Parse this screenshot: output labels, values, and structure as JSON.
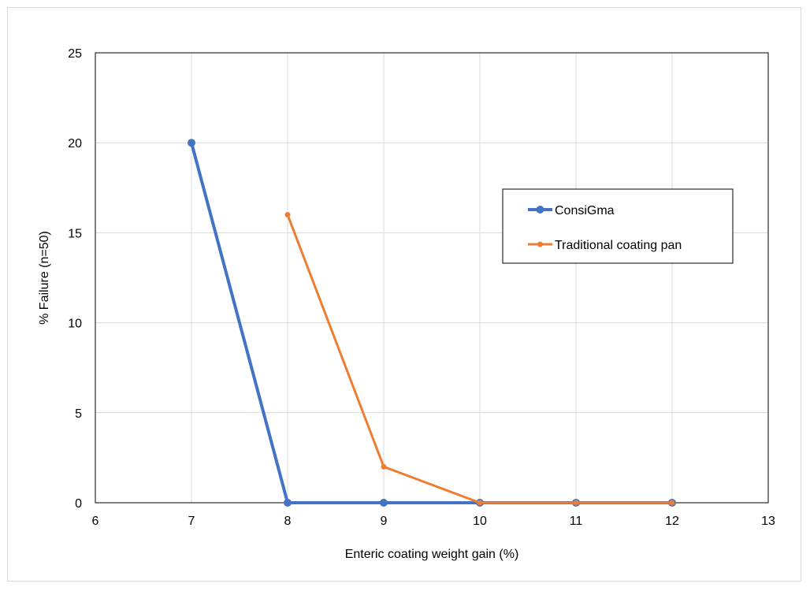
{
  "chart_data": {
    "type": "line",
    "title": "",
    "xlabel": "Enteric coating weight gain (%)",
    "ylabel": "% Failure (n=50)",
    "xlim": [
      6,
      13
    ],
    "ylim": [
      0,
      25
    ],
    "x_ticks": [
      6,
      7,
      8,
      9,
      10,
      11,
      12,
      13
    ],
    "y_ticks": [
      0,
      5,
      10,
      15,
      20,
      25
    ],
    "grid": true,
    "legend_position": "right",
    "series": [
      {
        "name": "ConsiGma",
        "color": "#4472C4",
        "x": [
          7,
          8,
          9,
          10,
          11,
          12
        ],
        "y": [
          20,
          0,
          0,
          0,
          0,
          0
        ]
      },
      {
        "name": "Traditional coating pan",
        "color": "#ED7D31",
        "x": [
          8,
          9,
          10,
          11,
          12
        ],
        "y": [
          16,
          2,
          0,
          0,
          0
        ]
      }
    ]
  }
}
